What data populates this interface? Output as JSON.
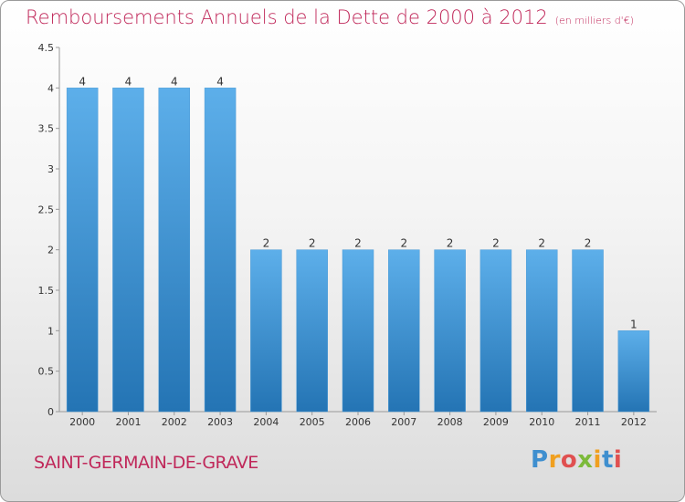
{
  "header": {
    "title": "Remboursements Annuels de la Dette de 2000 à 2012",
    "subtitle": "(en milliers d'€)"
  },
  "footer": {
    "commune": "SAINT-GERMAIN-DE-GRAVE",
    "logo": {
      "p": "P",
      "r": "r",
      "o": "o",
      "x": "x",
      "i1": "i",
      "t": "t",
      "i2": "i"
    }
  },
  "colors": {
    "accent": "#c0285a",
    "bar_top": "#5dafea",
    "bar_bottom": "#2474b4"
  },
  "chart_data": {
    "type": "bar",
    "categories": [
      "2000",
      "2001",
      "2002",
      "2003",
      "2004",
      "2005",
      "2006",
      "2007",
      "2008",
      "2009",
      "2010",
      "2011",
      "2012"
    ],
    "values": [
      4,
      4,
      4,
      4,
      2,
      2,
      2,
      2,
      2,
      2,
      2,
      2,
      1
    ],
    "ylim": [
      0,
      4.5
    ],
    "yticks": [
      "0",
      "0.5",
      "1",
      "1.5",
      "2",
      "2.5",
      "3",
      "3.5",
      "4",
      "4.5"
    ],
    "grid": false,
    "title": "Remboursements Annuels de la Dette de 2000 à 2012",
    "subtitle": "(en milliers d'€)"
  }
}
